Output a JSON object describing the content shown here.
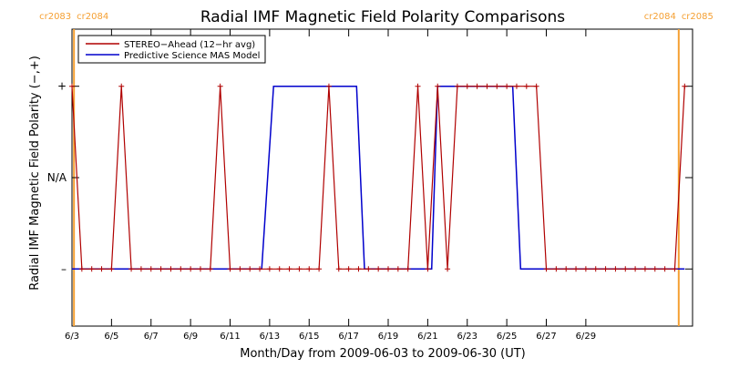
{
  "chart_data": {
    "type": "line",
    "title": "Radial IMF Magnetic Field Polarity Comparisons",
    "xlabel": "Month/Day from 2009-06-03 to 2009-06-30 (UT)",
    "ylabel": "Radial IMF Magnetic Field Polarity (−,+)",
    "x_domain_days": [
      0,
      31.4
    ],
    "y_domain": [
      -0.5,
      2.1
    ],
    "grid": false,
    "legend_position": "top-left",
    "x_ticks": [
      {
        "day": 0,
        "label": "6/3"
      },
      {
        "day": 2,
        "label": "6/5"
      },
      {
        "day": 4,
        "label": "6/7"
      },
      {
        "day": 6,
        "label": "6/9"
      },
      {
        "day": 8,
        "label": "6/11"
      },
      {
        "day": 10,
        "label": "6/13"
      },
      {
        "day": 12,
        "label": "6/15"
      },
      {
        "day": 14,
        "label": "6/17"
      },
      {
        "day": 16,
        "label": "6/19"
      },
      {
        "day": 18,
        "label": "6/21"
      },
      {
        "day": 20,
        "label": "6/23"
      },
      {
        "day": 22,
        "label": "6/25"
      },
      {
        "day": 24,
        "label": "6/27"
      },
      {
        "day": 26,
        "label": "6/29"
      }
    ],
    "y_ticks": [
      {
        "value": 0,
        "label": "–"
      },
      {
        "value": 0.8,
        "label": "N/A"
      },
      {
        "value": 1.6,
        "label": "+"
      }
    ],
    "carrington_markers": [
      {
        "day": 0.1,
        "left_label": "cr2083",
        "right_label": "cr2084"
      },
      {
        "day": 30.7,
        "left_label": "cr2084",
        "right_label": "cr2085"
      }
    ],
    "marker_color": "#f5a033",
    "series": [
      {
        "name": "STEREO−Ahead (12−hr avg)",
        "color": "#b00000",
        "x": [
          0,
          0.5,
          1,
          1.5,
          2,
          2.5,
          3,
          3.5,
          4,
          4.5,
          5,
          5.5,
          6,
          6.5,
          7,
          7.5,
          8,
          8.5,
          9,
          9.5,
          10,
          10.5,
          11,
          11.5,
          12,
          12.5,
          13,
          13.5,
          14,
          14.5,
          15,
          15.5,
          16,
          16.5,
          17,
          17.5,
          18,
          18.5,
          19,
          19.5,
          20,
          20.5,
          21,
          21.5,
          22,
          22.5,
          23,
          23.5,
          24,
          24.5,
          25,
          25.5,
          26,
          26.5,
          27,
          27.5,
          28,
          28.5,
          29,
          29.5,
          30,
          30.5,
          31
        ],
        "values": [
          1.6,
          0,
          0,
          0,
          0,
          1.6,
          0,
          0,
          0,
          0,
          0,
          0,
          0,
          0,
          0,
          1.6,
          0,
          0,
          0,
          0,
          0,
          0,
          0,
          0,
          0,
          0,
          1.6,
          0,
          0,
          0,
          0,
          0,
          0,
          0,
          0,
          1.6,
          0,
          1.6,
          0,
          1.6,
          1.6,
          1.6,
          1.6,
          1.6,
          1.6,
          1.6,
          1.6,
          1.6,
          0,
          0,
          0,
          0,
          0,
          0,
          0,
          0,
          0,
          0,
          0,
          0,
          0,
          0,
          1.6
        ]
      },
      {
        "name": "Predictive Science MAS Model",
        "color": "#0000cc",
        "x": [
          0,
          9.6,
          10.2,
          14.4,
          14.8,
          18.2,
          18.5,
          22.3,
          22.7,
          31
        ],
        "values": [
          0,
          0,
          1.6,
          1.6,
          0,
          0,
          1.6,
          1.6,
          0,
          0
        ]
      }
    ]
  }
}
